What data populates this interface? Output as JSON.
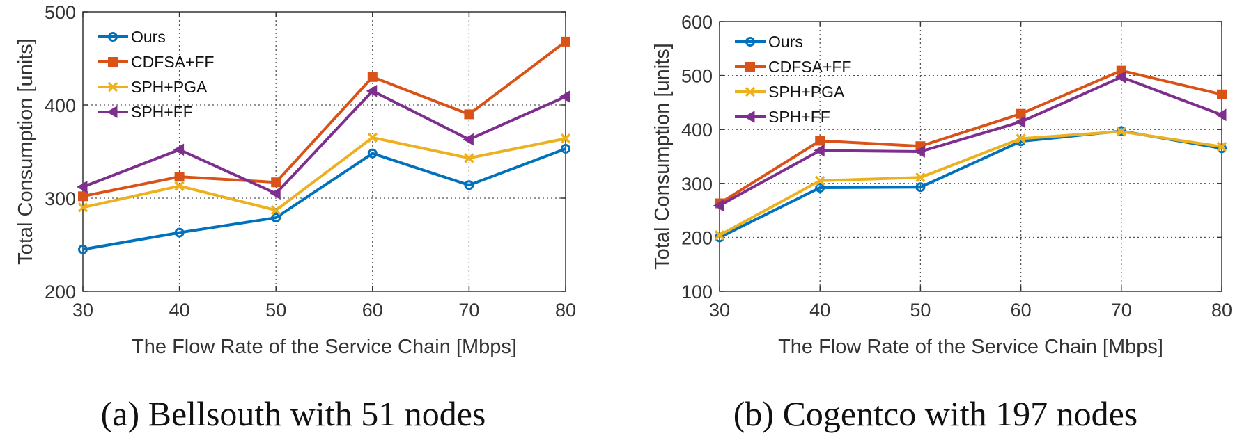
{
  "chart_data": [
    {
      "type": "line",
      "caption": "(a) Bellsouth with 51 nodes",
      "xlabel": "The Flow Rate of the Service Chain [Mbps]",
      "ylabel": "Total Consumption [units]",
      "x": [
        30,
        40,
        50,
        60,
        70,
        80
      ],
      "xlim": [
        30,
        80
      ],
      "ylim": [
        200,
        500
      ],
      "yticks": [
        200,
        300,
        400,
        500
      ],
      "grid": true,
      "legend_position": "top-left",
      "series": [
        {
          "name": "Ours",
          "color": "#0072BD",
          "marker": "circle",
          "values": [
            245,
            263,
            279,
            348,
            314,
            353
          ]
        },
        {
          "name": "CDFSA+FF",
          "color": "#D95319",
          "marker": "square",
          "values": [
            302,
            323,
            317,
            430,
            390,
            468
          ]
        },
        {
          "name": "SPH+PGA",
          "color": "#EDB120",
          "marker": "x",
          "values": [
            290,
            313,
            287,
            365,
            343,
            364
          ]
        },
        {
          "name": "SPH+FF",
          "color": "#7E2F8E",
          "marker": "triangle-left",
          "values": [
            312,
            352,
            305,
            415,
            363,
            409
          ]
        }
      ]
    },
    {
      "type": "line",
      "caption": "(b) Cogentco with 197 nodes",
      "xlabel": "The Flow Rate of the Service Chain [Mbps]",
      "ylabel": "Total Consumption [units]",
      "x": [
        30,
        40,
        50,
        60,
        70,
        80
      ],
      "xlim": [
        30,
        80
      ],
      "ylim": [
        100,
        600
      ],
      "yticks": [
        100,
        200,
        300,
        400,
        500,
        600
      ],
      "grid": true,
      "legend_position": "top-left",
      "series": [
        {
          "name": "Ours",
          "color": "#0072BD",
          "marker": "circle",
          "values": [
            200,
            292,
            293,
            378,
            397,
            365
          ]
        },
        {
          "name": "CDFSA+FF",
          "color": "#D95319",
          "marker": "square",
          "values": [
            263,
            379,
            369,
            429,
            509,
            465
          ]
        },
        {
          "name": "SPH+PGA",
          "color": "#EDB120",
          "marker": "x",
          "values": [
            204,
            305,
            311,
            383,
            396,
            368
          ]
        },
        {
          "name": "SPH+FF",
          "color": "#7E2F8E",
          "marker": "triangle-left",
          "values": [
            259,
            361,
            359,
            414,
            497,
            427
          ]
        }
      ]
    }
  ]
}
